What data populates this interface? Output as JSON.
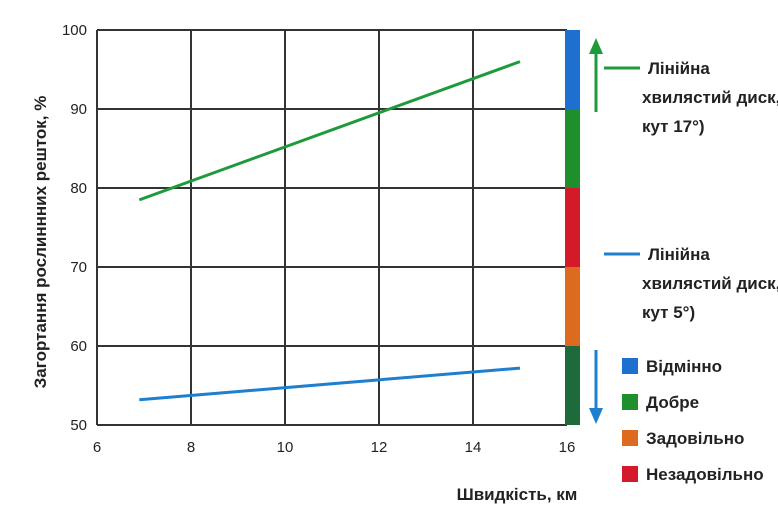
{
  "chart_data": {
    "type": "line",
    "xlabel": "Швидкість, км",
    "ylabel": "Загортання рослиннних решток, %",
    "xlim": [
      6,
      16
    ],
    "ylim": [
      50,
      100
    ],
    "xticks": [
      6,
      8,
      10,
      12,
      14,
      16
    ],
    "yticks": [
      50,
      60,
      70,
      80,
      90,
      100
    ],
    "grid": true,
    "series": [
      {
        "name_lines": [
          "Лінійна",
          "хвилястий диск,",
          "кут 17°)"
        ],
        "color": "#1e9a3c",
        "x": [
          6.9,
          15.0
        ],
        "y": [
          78.5,
          96.0
        ],
        "direction": "up"
      },
      {
        "name_lines": [
          "Лінійна",
          "хвилястий диск,",
          "кут 5°)"
        ],
        "color": "#1c7fcf",
        "x": [
          6.9,
          15.0
        ],
        "y": [
          53.2,
          57.2
        ],
        "direction": "down"
      }
    ],
    "rating_bands": [
      {
        "from": 90,
        "to": 100,
        "color": "#1f6fd0"
      },
      {
        "from": 80,
        "to": 90,
        "color": "#1f8f2e"
      },
      {
        "from": 70,
        "to": 80,
        "color": "#d3192a"
      },
      {
        "from": 60,
        "to": 70,
        "color": "#dd6b1f"
      },
      {
        "from": 50,
        "to": 60,
        "color": "#1e6a3b"
      }
    ],
    "rating_legend": [
      {
        "label": "Відмінно",
        "color": "#1f6fd0"
      },
      {
        "label": "Добре",
        "color": "#1f8f2e"
      },
      {
        "label": "Задовільно",
        "color": "#dd6b1f"
      },
      {
        "label": "Незадовільно",
        "color": "#d3192a"
      }
    ]
  }
}
